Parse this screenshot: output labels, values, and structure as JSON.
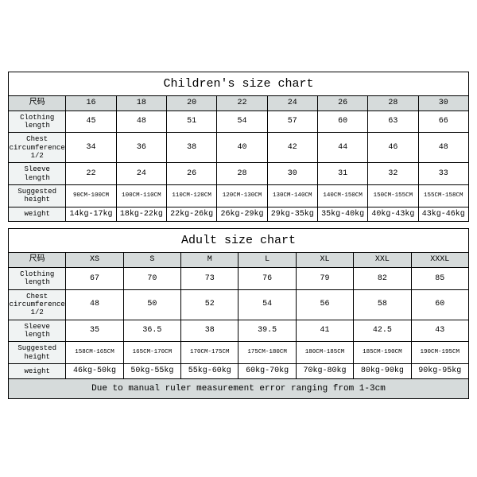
{
  "children": {
    "title": "Children's size chart",
    "size_header": "尺码",
    "sizes": [
      "16",
      "18",
      "20",
      "22",
      "24",
      "26",
      "28",
      "30"
    ],
    "rows": [
      {
        "label": "Clothing length",
        "vals": [
          "45",
          "48",
          "51",
          "54",
          "57",
          "60",
          "63",
          "66"
        ]
      },
      {
        "label": "Chest circumference 1/2",
        "vals": [
          "34",
          "36",
          "38",
          "40",
          "42",
          "44",
          "46",
          "48"
        ]
      },
      {
        "label": "Sleeve length",
        "vals": [
          "22",
          "24",
          "26",
          "28",
          "30",
          "31",
          "32",
          "33"
        ]
      },
      {
        "label": "Suggested height",
        "vals": [
          "90CM-100CM",
          "100CM-110CM",
          "110CM-120CM",
          "120CM-130CM",
          "130CM-140CM",
          "140CM-150CM",
          "150CM-155CM",
          "155CM-158CM"
        ],
        "small": true
      },
      {
        "label": "weight",
        "vals": [
          "14kg-17kg",
          "18kg-22kg",
          "22kg-26kg",
          "26kg-29kg",
          "29kg-35kg",
          "35kg-40kg",
          "40kg-43kg",
          "43kg-46kg"
        ]
      }
    ]
  },
  "adult": {
    "title": "Adult size chart",
    "size_header": "尺码",
    "sizes": [
      "XS",
      "S",
      "M",
      "L",
      "XL",
      "XXL",
      "XXXL"
    ],
    "rows": [
      {
        "label": "Clothing length",
        "vals": [
          "67",
          "70",
          "73",
          "76",
          "79",
          "82",
          "85"
        ]
      },
      {
        "label": "Chest circumference 1/2",
        "vals": [
          "48",
          "50",
          "52",
          "54",
          "56",
          "58",
          "60"
        ]
      },
      {
        "label": "Sleeve length",
        "vals": [
          "35",
          "36.5",
          "38",
          "39.5",
          "41",
          "42.5",
          "43"
        ]
      },
      {
        "label": "Suggested height",
        "vals": [
          "158CM-165CM",
          "165CM-170CM",
          "170CM-175CM",
          "175CM-180CM",
          "180CM-185CM",
          "185CM-190CM",
          "190CM-195CM"
        ],
        "small": true
      },
      {
        "label": "weight",
        "vals": [
          "46kg-50kg",
          "50kg-55kg",
          "55kg-60kg",
          "60kg-70kg",
          "70kg-80kg",
          "80kg-90kg",
          "90kg-95kg"
        ]
      }
    ],
    "note": "Due to manual ruler measurement error ranging from 1-3cm"
  },
  "style": {
    "header_bg": "#d6dbdb",
    "label_bg": "#f0f3f3",
    "border_color": "#000000",
    "background": "#ffffff",
    "font": "Courier New"
  }
}
